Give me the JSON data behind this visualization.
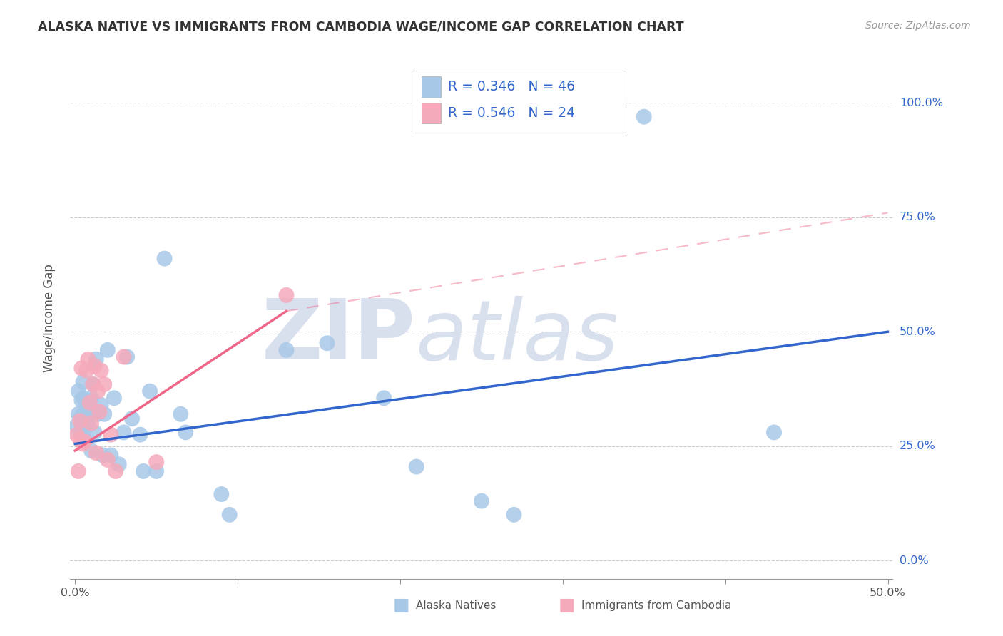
{
  "title": "ALASKA NATIVE VS IMMIGRANTS FROM CAMBODIA WAGE/INCOME GAP CORRELATION CHART",
  "source": "Source: ZipAtlas.com",
  "ylabel": "Wage/Income Gap",
  "xlim": [
    -0.003,
    0.503
  ],
  "ylim": [
    -0.04,
    1.1
  ],
  "xtick_positions": [
    0.0,
    0.1,
    0.2,
    0.3,
    0.4,
    0.5
  ],
  "xticklabels": [
    "0.0%",
    "",
    "",
    "",
    "",
    "50.0%"
  ],
  "ytick_positions": [
    0.0,
    0.25,
    0.5,
    0.75,
    1.0
  ],
  "yticklabels": [
    "0.0%",
    "25.0%",
    "50.0%",
    "75.0%",
    "100.0%"
  ],
  "blue_scatter_color": "#A8C8E8",
  "pink_scatter_color": "#F5AABB",
  "blue_line_color": "#3366CC",
  "pink_line_color": "#EE6688",
  "pink_dash_color": "#EE6688",
  "grid_color": "#CCCCCC",
  "tick_color": "#999999",
  "label_color": "#3366CC",
  "watermark_color": "#D8E0EE",
  "legend_R1": "R = 0.346",
  "legend_N1": "N = 46",
  "legend_R2": "R = 0.546",
  "legend_N2": "N = 24",
  "legend_label1": "Alaska Natives",
  "legend_label2": "Immigrants from Cambodia",
  "blue_x": [
    0.001,
    0.002,
    0.002,
    0.003,
    0.004,
    0.004,
    0.005,
    0.005,
    0.006,
    0.007,
    0.007,
    0.008,
    0.009,
    0.01,
    0.01,
    0.011,
    0.012,
    0.013,
    0.014,
    0.016,
    0.017,
    0.018,
    0.02,
    0.022,
    0.024,
    0.027,
    0.03,
    0.032,
    0.035,
    0.04,
    0.042,
    0.046,
    0.05,
    0.055,
    0.065,
    0.068,
    0.09,
    0.095,
    0.13,
    0.155,
    0.19,
    0.21,
    0.25,
    0.27,
    0.35,
    0.43
  ],
  "blue_y": [
    0.295,
    0.32,
    0.37,
    0.28,
    0.315,
    0.35,
    0.355,
    0.39,
    0.265,
    0.335,
    0.305,
    0.295,
    0.33,
    0.24,
    0.355,
    0.385,
    0.28,
    0.44,
    0.32,
    0.34,
    0.23,
    0.32,
    0.46,
    0.23,
    0.355,
    0.21,
    0.28,
    0.445,
    0.31,
    0.275,
    0.195,
    0.37,
    0.195,
    0.66,
    0.32,
    0.28,
    0.145,
    0.1,
    0.46,
    0.475,
    0.355,
    0.205,
    0.13,
    0.1,
    0.97,
    0.28
  ],
  "pink_x": [
    0.001,
    0.002,
    0.003,
    0.003,
    0.004,
    0.005,
    0.006,
    0.007,
    0.008,
    0.009,
    0.01,
    0.011,
    0.012,
    0.013,
    0.014,
    0.015,
    0.016,
    0.018,
    0.02,
    0.022,
    0.025,
    0.03,
    0.05,
    0.13
  ],
  "pink_y": [
    0.275,
    0.195,
    0.305,
    0.265,
    0.42,
    0.255,
    0.26,
    0.415,
    0.44,
    0.345,
    0.3,
    0.385,
    0.425,
    0.235,
    0.37,
    0.325,
    0.415,
    0.385,
    0.22,
    0.275,
    0.195,
    0.445,
    0.215,
    0.58
  ],
  "blue_trend": [
    0.0,
    0.5,
    0.255,
    0.5
  ],
  "pink_trend_solid": [
    0.0,
    0.13,
    0.24,
    0.545
  ],
  "pink_trend_dashed": [
    0.13,
    0.5,
    0.545,
    0.76
  ]
}
